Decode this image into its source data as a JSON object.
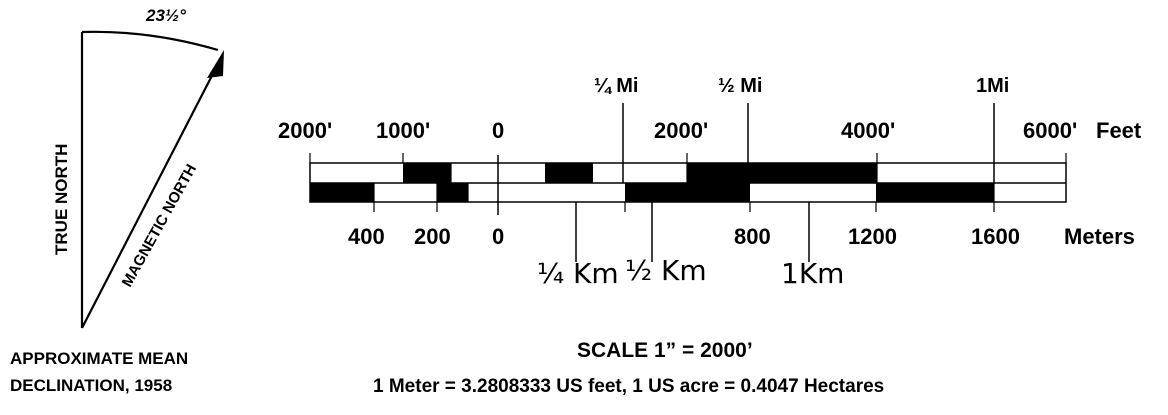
{
  "declination": {
    "angle": "23½°",
    "true_north": "TRUE NORTH",
    "magnetic_north": "MAGNETIC NORTH",
    "caption_line1": "APPROXIMATE MEAN",
    "caption_line2": "DECLINATION, 1958"
  },
  "scale": {
    "miles": [
      "¼ Mi",
      "½ Mi",
      "1Mi"
    ],
    "feet": [
      "2000'",
      "1000'",
      "0",
      "2000'",
      "4000'",
      "6000'"
    ],
    "feet_unit": "Feet",
    "meters": [
      "400",
      "200",
      "0",
      "800",
      "1200",
      "1600"
    ],
    "meter_unit": "Meters",
    "km": [
      "¼ Km",
      "½ Km",
      "1Km"
    ],
    "ratio_text": "SCALE 1” = 2000’",
    "conversion_text": "1 Meter = 3.2808333 US feet,  1 US acre = 0.4047 Hectares"
  }
}
